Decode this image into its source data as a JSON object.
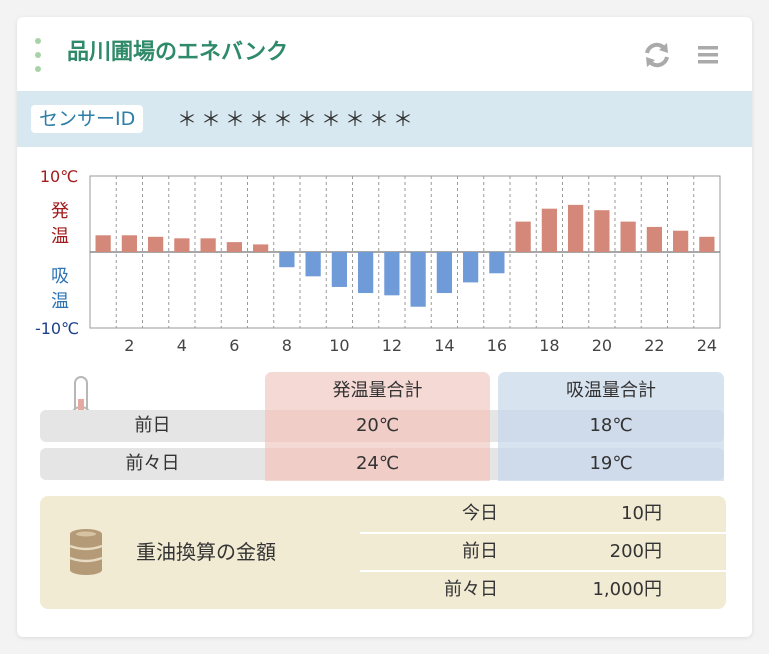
{
  "header": {
    "title": "品川圃場のエネバンク",
    "refresh_icon": "refresh-icon",
    "menu_icon": "hamburger-menu-icon"
  },
  "sensor": {
    "label": "センサーID",
    "value": "＊＊＊＊＊＊＊＊＊＊"
  },
  "chart_data": {
    "type": "bar",
    "x": [
      1,
      2,
      3,
      4,
      5,
      6,
      7,
      8,
      9,
      10,
      11,
      12,
      13,
      14,
      15,
      16,
      17,
      18,
      19,
      20,
      21,
      22,
      23,
      24
    ],
    "values": [
      2.2,
      2.2,
      2.0,
      1.8,
      1.8,
      1.3,
      1.0,
      -2.0,
      -3.2,
      -4.6,
      -5.4,
      -5.7,
      -7.2,
      -5.4,
      -4.0,
      -2.8,
      4.0,
      5.7,
      6.2,
      5.5,
      4.0,
      3.3,
      2.8,
      2.0
    ],
    "xtick_labels": [
      "2",
      "4",
      "6",
      "8",
      "10",
      "12",
      "14",
      "16",
      "18",
      "20",
      "22",
      "24"
    ],
    "xtick_positions": [
      2,
      4,
      6,
      8,
      10,
      12,
      14,
      16,
      18,
      20,
      22,
      24
    ],
    "ylim": [
      -10,
      10
    ],
    "ytop_label": "10℃",
    "ybottom_label": "-10℃",
    "positive_label": [
      "発",
      "温"
    ],
    "negative_label": [
      "吸",
      "温"
    ],
    "positive_color": "#d4887a",
    "negative_color": "#6f9bd8",
    "grid": true
  },
  "summary": {
    "col_heat": "発温量合計",
    "col_absorb": "吸温量合計",
    "thermometer_icon": "thermometer-icon",
    "rows": [
      {
        "label": "前日",
        "heat": "20℃",
        "absorb": "18℃"
      },
      {
        "label": "前々日",
        "heat": "24℃",
        "absorb": "19℃"
      }
    ]
  },
  "oil": {
    "label": "重油換算の金額",
    "icon": "oil-barrel-icon",
    "rows": [
      {
        "label": "今日",
        "value": "10円"
      },
      {
        "label": "前日",
        "value": "200円"
      },
      {
        "label": "前々日",
        "value": "1,000円"
      }
    ]
  },
  "colors": {
    "title": "#2f8a6a",
    "sensor_bar": "#d7e8f0",
    "heat_bg": "#f5d9d4",
    "absorb_bg": "#d8e3f0",
    "oil_bg": "#f1ebd4"
  }
}
